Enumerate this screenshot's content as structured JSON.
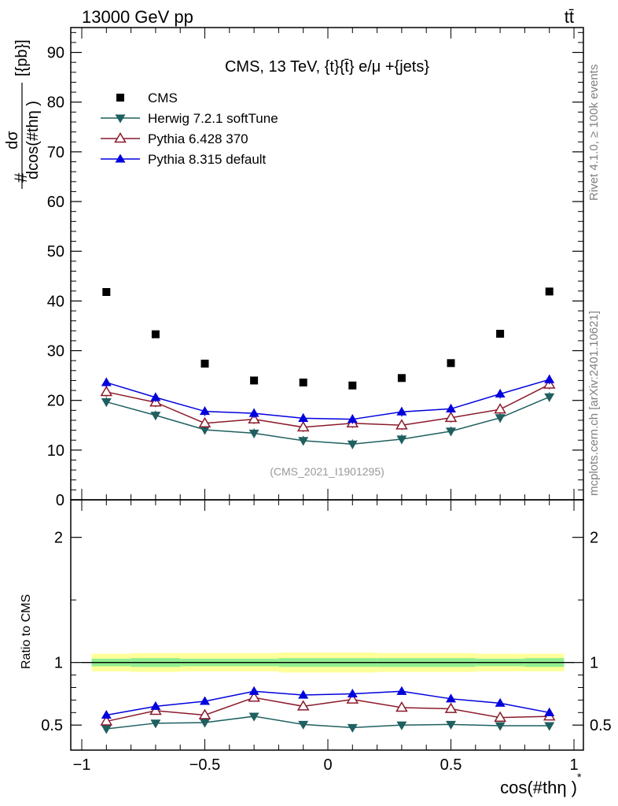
{
  "header": {
    "energy_label": "13000 GeV pp",
    "process_label": "tt̄"
  },
  "side_labels": {
    "rivet": "Rivet 4.1.0, ≥ 100k events",
    "mcplots": "mcplots.cern.ch [arXiv:2401.10621]"
  },
  "chart_data": [
    {
      "type": "scatter",
      "panel": "main",
      "title": "CMS, 13 TeV, {t}{t̄} e/μ +{jets}",
      "analysis_tag": "(CMS_2021_I1901295)",
      "ylabel_numerator": "dσ",
      "ylabel_denominator": "dcos(#thη )",
      "ylabel_prefix": "#",
      "ylabel_unit": "[{pb}]",
      "xlabel": "cos(#thη )",
      "xlabel_sup": "*",
      "xlim": [
        -1,
        1
      ],
      "ylim": [
        0,
        95
      ],
      "y_ticks": [
        0,
        10,
        20,
        30,
        40,
        50,
        60,
        70,
        80,
        90
      ],
      "y_tick_labels": [
        "0",
        "10",
        "20",
        "30",
        "40",
        "50",
        "60",
        "70",
        "80",
        "90"
      ],
      "x": [
        -0.9,
        -0.7,
        -0.5,
        -0.3,
        -0.1,
        0.1,
        0.3,
        0.5,
        0.7,
        0.9
      ],
      "legend_position": "top-left",
      "series": [
        {
          "name": "CMS",
          "color": "#000000",
          "marker": "square",
          "values": [
            41.8,
            33.3,
            27.4,
            24.0,
            23.6,
            23.0,
            24.5,
            27.5,
            33.4,
            41.9
          ]
        },
        {
          "name": "Herwig 7.2.1 softTune",
          "color": "#1f5f5f",
          "marker": "triangle-down",
          "values": [
            19.7,
            17.0,
            14.1,
            13.4,
            11.9,
            11.2,
            12.2,
            13.8,
            16.5,
            20.7
          ]
        },
        {
          "name": "Pythia 6.428 370",
          "color": "#8b1a2b",
          "marker": "triangle-up-open",
          "values": [
            21.7,
            19.6,
            15.4,
            16.2,
            14.6,
            15.4,
            15.0,
            16.5,
            18.2,
            23.2
          ]
        },
        {
          "name": "Pythia 8.315 default",
          "color": "#0000dd",
          "marker": "triangle-up",
          "values": [
            23.6,
            20.6,
            17.8,
            17.4,
            16.4,
            16.2,
            17.7,
            18.3,
            21.3,
            24.2
          ]
        }
      ]
    },
    {
      "type": "scatter",
      "panel": "ratio",
      "ylabel": "Ratio to CMS",
      "xlim": [
        -1,
        1
      ],
      "ylim": [
        0.3,
        2.3
      ],
      "x_ticks": [
        -1,
        -0.5,
        0,
        0.5,
        1
      ],
      "x_tick_labels": [
        "−1",
        "−0.5",
        "0",
        "0.5",
        "1"
      ],
      "y_ticks": [
        0.5,
        1,
        2
      ],
      "y_tick_labels": [
        "0.5",
        "1",
        "2"
      ],
      "reference_line": 1,
      "band_edges": [
        -0.96,
        -0.8,
        -0.6,
        -0.2,
        0.0,
        0.2,
        0.6,
        0.8,
        0.96
      ],
      "band_inner": [
        [
          0.97,
          1.03
        ],
        [
          0.965,
          1.035
        ],
        [
          0.97,
          1.03
        ],
        [
          0.965,
          1.035
        ],
        [
          0.965,
          1.035
        ],
        [
          0.965,
          1.035
        ],
        [
          0.97,
          1.03
        ],
        [
          0.965,
          1.035
        ]
      ],
      "band_outer": [
        [
          0.93,
          1.07
        ],
        [
          0.925,
          1.075
        ],
        [
          0.93,
          1.075
        ],
        [
          0.92,
          1.08
        ],
        [
          0.92,
          1.08
        ],
        [
          0.925,
          1.075
        ],
        [
          0.93,
          1.07
        ],
        [
          0.93,
          1.07
        ]
      ],
      "x": [
        -0.9,
        -0.7,
        -0.5,
        -0.3,
        -0.1,
        0.1,
        0.3,
        0.5,
        0.7,
        0.9
      ],
      "series": [
        {
          "name": "Herwig 7.2.1 softTune",
          "color": "#1f5f5f",
          "marker": "triangle-down",
          "values": [
            0.47,
            0.515,
            0.52,
            0.57,
            0.505,
            0.48,
            0.5,
            0.505,
            0.495,
            0.495
          ],
          "errors": [
            0.015,
            0.015,
            0.018,
            0.02,
            0.018,
            0.018,
            0.018,
            0.018,
            0.018,
            0.015
          ]
        },
        {
          "name": "Pythia 6.428 370",
          "color": "#8b1a2b",
          "marker": "triangle-up-open",
          "values": [
            0.53,
            0.615,
            0.58,
            0.72,
            0.65,
            0.705,
            0.64,
            0.63,
            0.56,
            0.57
          ],
          "errors": [
            0.015,
            0.015,
            0.018,
            0.02,
            0.018,
            0.018,
            0.018,
            0.018,
            0.018,
            0.015
          ]
        },
        {
          "name": "Pythia 8.315 default",
          "color": "#0000dd",
          "marker": "triangle-up",
          "values": [
            0.58,
            0.65,
            0.69,
            0.77,
            0.74,
            0.75,
            0.77,
            0.71,
            0.675,
            0.6
          ],
          "errors": [
            0.018,
            0.018,
            0.02,
            0.022,
            0.02,
            0.02,
            0.02,
            0.02,
            0.018,
            0.018
          ]
        }
      ]
    }
  ]
}
